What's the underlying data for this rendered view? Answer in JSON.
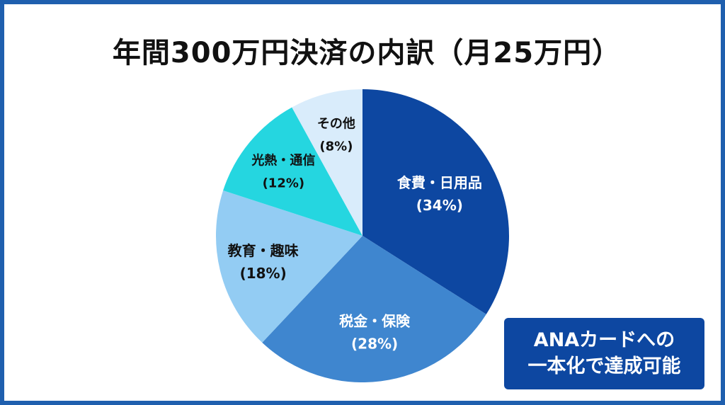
{
  "chart_data": {
    "type": "pie",
    "title": "年間300万円決済の内訳（月25万円）",
    "start_angle_deg": 0,
    "direction": "clockwise",
    "slices": [
      {
        "label": "食費・日用品",
        "value": 34,
        "value_label": "(34%)",
        "color": "#0d47a1",
        "text_color": "#ffffff"
      },
      {
        "label": "税金・保険",
        "value": 28,
        "value_label": "(28%)",
        "color": "#3f86cf",
        "text_color": "#ffffff"
      },
      {
        "label": "教育・趣味",
        "value": 18,
        "value_label": "(18%)",
        "color": "#93ccf3",
        "text_color": "#111111"
      },
      {
        "label": "光熱・通信",
        "value": 12,
        "value_label": "(12%)",
        "color": "#25d6e0",
        "text_color": "#111111"
      },
      {
        "label": "その他",
        "value": 8,
        "value_label": "(8%)",
        "color": "#d9ecfb",
        "text_color": "#111111"
      }
    ]
  },
  "badge": {
    "line1": "ANAカードへの",
    "line2": "一本化で達成可能"
  }
}
